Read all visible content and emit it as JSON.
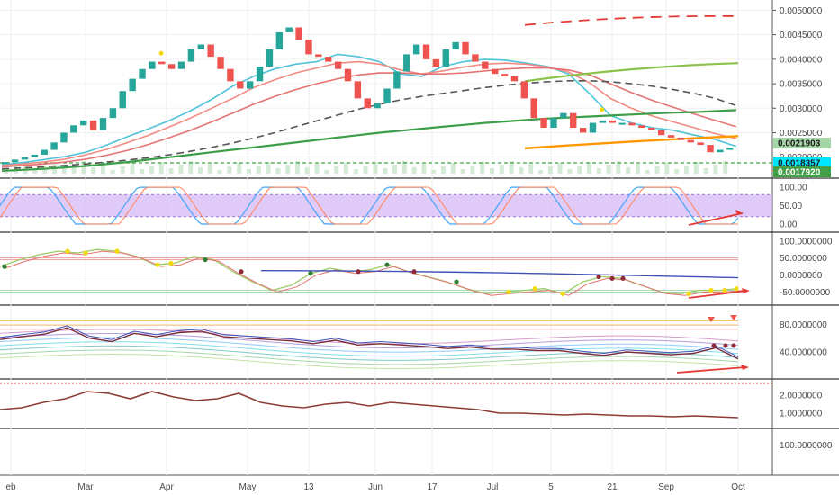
{
  "chart_data": [
    {
      "type": "candlestick",
      "panel": "price",
      "ylim": [
        0.0017,
        0.0051
      ],
      "y_ticks": [
        "0.0050000",
        "0.0045000",
        "0.0040000",
        "0.0035000",
        "0.0030000",
        "0.0025000",
        "0.0020000"
      ],
      "price_badges": [
        {
          "label": "0.0021903",
          "value": 0.0021903,
          "color": "#a5d6a7",
          "text_color": "#1b1b1b"
        },
        {
          "label": "0.0018357",
          "value": 0.0018357,
          "color": "#00e5ff",
          "text_color": "#1b1b1b"
        },
        {
          "label": "0.0017920",
          "value": 0.001792,
          "color": "#43a047",
          "text_color": "#ffffff"
        }
      ],
      "close": [
        0.0019,
        0.00195,
        0.002,
        0.00205,
        0.00215,
        0.0023,
        0.0025,
        0.00265,
        0.00275,
        0.00255,
        0.0028,
        0.003,
        0.00335,
        0.0036,
        0.0038,
        0.00395,
        0.0039,
        0.0038,
        0.00395,
        0.0042,
        0.0043,
        0.00405,
        0.0038,
        0.00355,
        0.0034,
        0.00355,
        0.00385,
        0.0042,
        0.00455,
        0.00465,
        0.0044,
        0.0041,
        0.00405,
        0.00395,
        0.0038,
        0.00355,
        0.0032,
        0.003,
        0.0031,
        0.0034,
        0.00375,
        0.0041,
        0.0043,
        0.004,
        0.00385,
        0.0042,
        0.00435,
        0.0041,
        0.00395,
        0.0038,
        0.0037,
        0.00365,
        0.00355,
        0.0032,
        0.0028,
        0.0026,
        0.0028,
        0.0029,
        0.0026,
        0.0025,
        0.0027,
        0.00275,
        0.0027,
        0.0027,
        0.00265,
        0.0026,
        0.00255,
        0.00245,
        0.0024,
        0.00235,
        0.0023,
        0.00225,
        0.0021,
        0.00215,
        0.00219
      ],
      "series": [
        {
          "name": "",
          "color": "#4fc3d9",
          "values": [
            0.00185,
            0.00189,
            0.00195,
            0.00201,
            0.0021,
            0.00225,
            0.00242,
            0.00258,
            0.00275,
            0.00295,
            0.00318,
            0.00345,
            0.00365,
            0.0038,
            0.0039,
            0.00395,
            0.0041,
            0.00405,
            0.00395,
            0.0037,
            0.00365,
            0.00385,
            0.00395,
            0.004,
            0.00398,
            0.00392,
            0.00385,
            0.0037,
            0.0033,
            0.00285,
            0.0027,
            0.0026,
            0.00255,
            0.00245,
            0.00236,
            0.00222
          ]
        },
        {
          "name": "",
          "color": "#f28b82",
          "values": [
            0.00183,
            0.00186,
            0.0019,
            0.00196,
            0.00205,
            0.00216,
            0.0023,
            0.00245,
            0.00262,
            0.0028,
            0.003,
            0.0032,
            0.00342,
            0.00358,
            0.00372,
            0.00382,
            0.00392,
            0.00395,
            0.0039,
            0.00378,
            0.0037,
            0.00376,
            0.00384,
            0.0039,
            0.00392,
            0.0039,
            0.00384,
            0.00374,
            0.00352,
            0.0032,
            0.003,
            0.00284,
            0.00272,
            0.0026,
            0.00248,
            0.00238
          ]
        },
        {
          "name": "",
          "color": "#e57373",
          "values": [
            0.0018,
            0.00183,
            0.00186,
            0.0019,
            0.00196,
            0.00204,
            0.00214,
            0.00226,
            0.0024,
            0.00255,
            0.00272,
            0.0029,
            0.00308,
            0.00324,
            0.00338,
            0.0035,
            0.0036,
            0.00368,
            0.00372,
            0.00372,
            0.0037,
            0.0037,
            0.00372,
            0.00376,
            0.0038,
            0.00382,
            0.00382,
            0.00378,
            0.00368,
            0.0035,
            0.00332,
            0.00316,
            0.00302,
            0.00288,
            0.00275,
            0.00262
          ]
        },
        {
          "name": "",
          "color": "#555555",
          "dash": "8,5",
          "values": [
            0.00176,
            0.00178,
            0.0018,
            0.00183,
            0.00186,
            0.0019,
            0.00194,
            0.00199,
            0.00205,
            0.00212,
            0.0022,
            0.00229,
            0.00239,
            0.0025,
            0.00262,
            0.00274,
            0.00286,
            0.00298,
            0.00308,
            0.00317,
            0.00324,
            0.0033,
            0.00336,
            0.00342,
            0.00347,
            0.00351,
            0.00354,
            0.00356,
            0.00356,
            0.00354,
            0.0035,
            0.00345,
            0.00338,
            0.0033,
            0.0032,
            0.00305
          ]
        },
        {
          "name": "",
          "color": "#3d9e4a",
          "values": [
            0.00172,
            0.00174,
            0.00176,
            0.00179,
            0.00182,
            0.00186,
            0.0019,
            0.00195,
            0.002,
            0.00205,
            0.0021,
            0.00215,
            0.0022,
            0.00225,
            0.0023,
            0.00235,
            0.0024,
            0.00245,
            0.0025,
            0.00254,
            0.00258,
            0.00262,
            0.00266,
            0.0027,
            0.00273,
            0.00276,
            0.00279,
            0.00281,
            0.00283,
            0.00285,
            0.00287,
            0.00289,
            0.00291,
            0.00292,
            0.00294,
            0.00296
          ]
        }
      ]
    },
    {
      "type": "line",
      "panel": "stochastic",
      "ylim": [
        -5,
        110
      ],
      "y_ticks": [
        "100.00",
        "50.00",
        "0.00"
      ]
    },
    {
      "type": "line",
      "panel": "oscillator",
      "ylim": [
        -70,
        110
      ],
      "y_ticks": [
        "100.0000000",
        "50.0000000",
        "0.0000000",
        "-50.0000000"
      ]
    },
    {
      "type": "line",
      "panel": "ribbon",
      "ylim": [
        10,
        100
      ],
      "y_ticks": [
        "80.0000000",
        "40.0000000"
      ]
    },
    {
      "type": "line",
      "panel": "ratio",
      "ylim": [
        0.5,
        2.6
      ],
      "y_ticks": [
        "2.0000000",
        "1.0000000"
      ]
    },
    {
      "type": "line",
      "panel": "empty",
      "y_ticks": [
        "100.0000000"
      ]
    }
  ],
  "x_axis": {
    "labels": [
      "eb",
      "Mar",
      "Apr",
      "May",
      "13",
      "Jun",
      "17",
      "Jul",
      "5",
      "21",
      "Sep",
      "Oct"
    ]
  },
  "colors": {
    "up": "#26a69a",
    "down": "#ef5350",
    "stoch_band": "#d6b8f5",
    "arrow": "#e53935",
    "dot_yellow": "#f5d90a",
    "dot_maroon": "#8e2a3a",
    "dot_green": "#2e7d32"
  }
}
